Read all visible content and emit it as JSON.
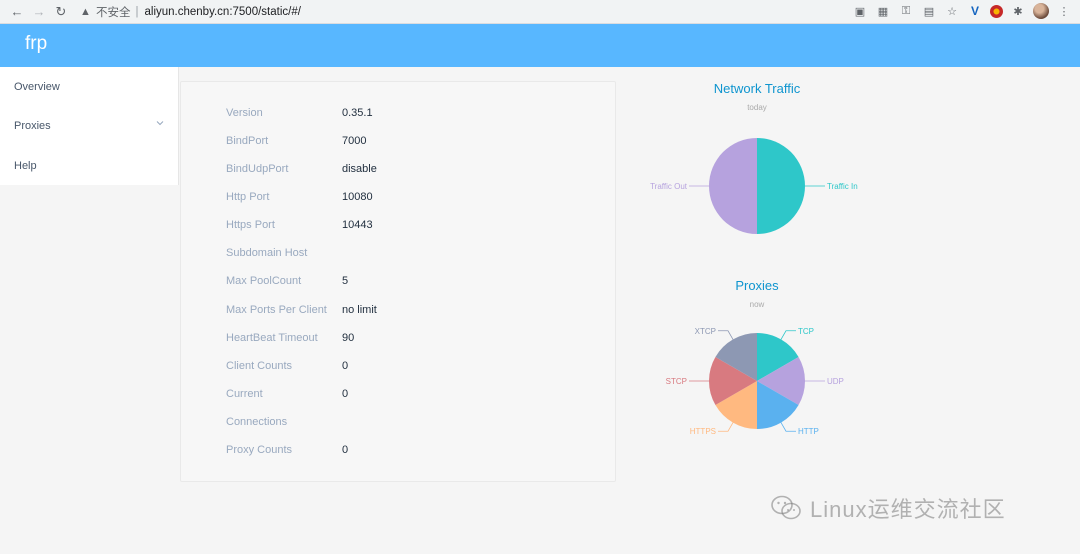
{
  "browser": {
    "insecure_label": "不安全",
    "url": "aliyun.chenby.cn:7500/static/#/"
  },
  "app": {
    "brand": "frp"
  },
  "sidebar": {
    "items": [
      {
        "label": "Overview"
      },
      {
        "label": "Proxies"
      },
      {
        "label": "Help"
      }
    ]
  },
  "server_info": [
    {
      "label": "Version",
      "value": "0.35.1"
    },
    {
      "label": "BindPort",
      "value": "7000"
    },
    {
      "label": "BindUdpPort",
      "value": "disable"
    },
    {
      "label": "Http Port",
      "value": "10080"
    },
    {
      "label": "Https Port",
      "value": "10443"
    },
    {
      "label": "Subdomain Host",
      "value": ""
    },
    {
      "label": "Max PoolCount",
      "value": "5"
    },
    {
      "label": "Max Ports Per Client",
      "value": "no limit"
    },
    {
      "label": "HeartBeat Timeout",
      "value": "90"
    },
    {
      "label": "Client Counts",
      "value": "0"
    },
    {
      "label": "Current",
      "value": "0"
    },
    {
      "label": "Connections",
      "value": ""
    },
    {
      "label": "Proxy Counts",
      "value": "0"
    }
  ],
  "chart_data": [
    {
      "type": "pie",
      "title": "Network Traffic",
      "subtitle": "today",
      "categories": [
        "Traffic In",
        "Traffic Out"
      ],
      "values": [
        50,
        50
      ],
      "colors": [
        "#2ec7c9",
        "#b6a2de"
      ]
    },
    {
      "type": "pie",
      "title": "Proxies",
      "subtitle": "now",
      "categories": [
        "TCP",
        "UDP",
        "HTTP",
        "HTTPS",
        "STCP",
        "XTCP"
      ],
      "values": [
        1,
        1,
        1,
        1,
        1,
        1
      ],
      "colors": [
        "#2ec7c9",
        "#b6a2de",
        "#5ab1ef",
        "#ffb980",
        "#d87a80",
        "#8d98b3"
      ]
    }
  ],
  "watermark": {
    "text": "Linux运维交流社区"
  }
}
